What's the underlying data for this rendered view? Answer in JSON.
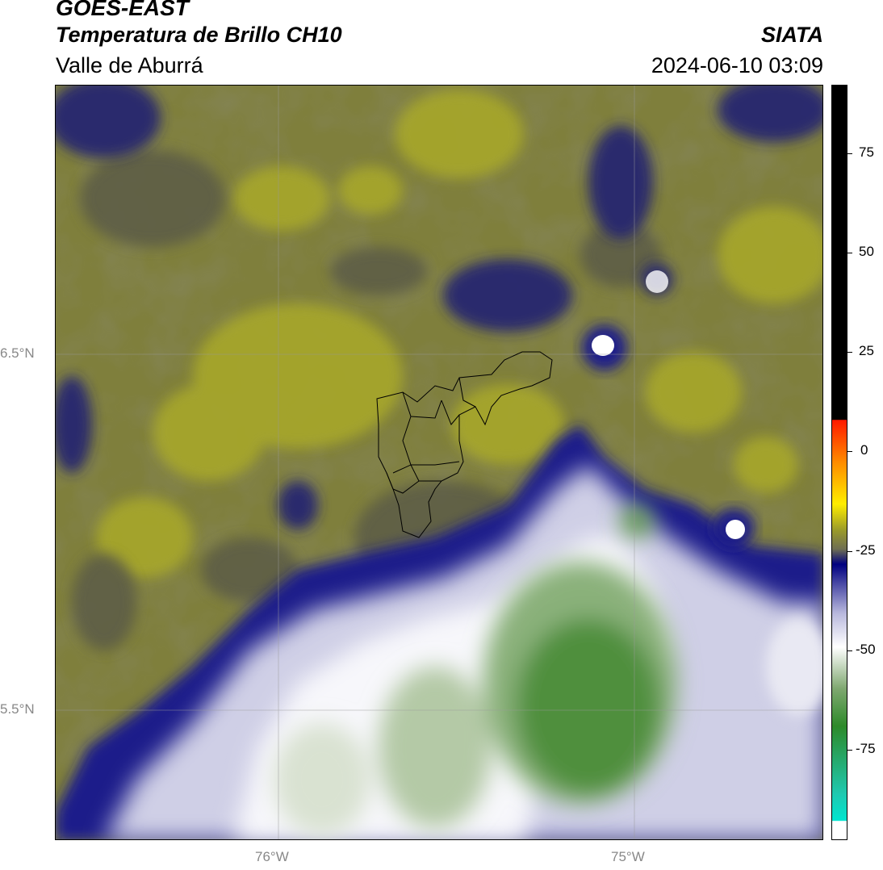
{
  "header": {
    "title": "GOES-EAST",
    "subtitle": "Temperatura de Brillo CH10",
    "region": "Valle de Aburrá",
    "brand": "SIATA",
    "datetime": "2024-06-10 03:09"
  },
  "map": {
    "graticule": {
      "latitudes": [
        {
          "value": 6.5,
          "label": "6.5°N"
        },
        {
          "value": 5.5,
          "label": "5.5°N"
        }
      ],
      "longitudes": [
        {
          "value": -76,
          "label": "76°W"
        },
        {
          "value": -75,
          "label": "75°W"
        }
      ]
    }
  },
  "colorbar": {
    "ticks": [
      {
        "value": 75,
        "label": "75"
      },
      {
        "value": 50,
        "label": "50"
      },
      {
        "value": 25,
        "label": "25"
      },
      {
        "value": 0,
        "label": "0"
      },
      {
        "value": -25,
        "label": "-25"
      },
      {
        "value": -50,
        "label": "-50"
      },
      {
        "value": -75,
        "label": "-75"
      }
    ],
    "colors": {
      "warm": "#000000",
      "red": "#ff1a00",
      "orange": "#ff8c00",
      "yellow": "#ffee00",
      "olive": "#9a9a2a",
      "navy": "#000080",
      "white": "#ffffff",
      "green": "#3a8a2a",
      "cyan": "#00e5d0"
    }
  }
}
